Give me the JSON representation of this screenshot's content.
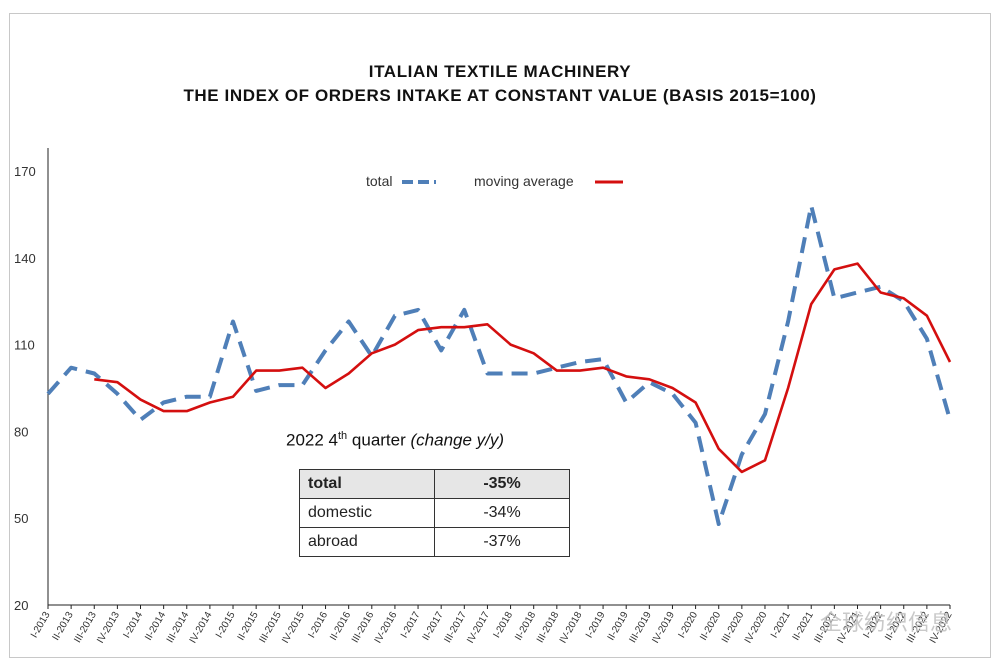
{
  "chart_data": {
    "type": "line",
    "title": [
      "ITALIAN TEXTILE MACHINERY",
      "THE INDEX OF ORDERS INTAKE AT CONSTANT VALUE (BASIS 2015=100)"
    ],
    "xlabel": "",
    "ylabel": "",
    "ylim": [
      20,
      170
    ],
    "yticks": [
      20,
      50,
      80,
      110,
      140,
      170
    ],
    "grid": false,
    "legend_position": "top-center",
    "categories": [
      "I-2013",
      "II-2013",
      "III-2013",
      "IV-2013",
      "I-2014",
      "II-2014",
      "III-2014",
      "IV-2014",
      "I-2015",
      "II-2015",
      "III-2015",
      "IV-2015",
      "I-2016",
      "II-2016",
      "III-2016",
      "IV-2016",
      "I-2017",
      "II-2017",
      "III-2017",
      "IV-2017",
      "I-2018",
      "II-2018",
      "III-2018",
      "IV-2018",
      "I-2019",
      "II-2019",
      "III-2019",
      "IV-2019",
      "I-2020",
      "II-2020",
      "III-2020",
      "IV-2020",
      "I-2021",
      "II-2021",
      "III-2021",
      "IV-2021",
      "I-2022",
      "II-2022",
      "III-2022",
      "IV-2022"
    ],
    "series": [
      {
        "name": "total",
        "style": "dashed",
        "color": "#4f7fb8",
        "values": [
          93,
          102,
          100,
          93,
          84,
          90,
          92,
          92,
          118,
          94,
          96,
          96,
          108,
          118,
          106,
          120,
          122,
          108,
          122,
          100,
          100,
          100,
          102,
          104,
          105,
          90,
          97,
          93,
          83,
          48,
          72,
          86,
          118,
          158,
          126,
          128,
          130,
          125,
          112,
          84
        ]
      },
      {
        "name": "moving average",
        "style": "solid",
        "color": "#d40f0f",
        "values": [
          null,
          null,
          98,
          97,
          91,
          87,
          87,
          90,
          92,
          101,
          101,
          102,
          95,
          100,
          107,
          110,
          115,
          116,
          116,
          117,
          110,
          107,
          101,
          101,
          102,
          99,
          98,
          95,
          90,
          74,
          66,
          70,
          95,
          124,
          136,
          138,
          128,
          126,
          120,
          104
        ]
      }
    ]
  },
  "legend": {
    "total": "total",
    "moving_average": "moving average"
  },
  "inset": {
    "title_prefix": "2022 4",
    "title_sup": "th",
    "title_suffix": " quarter ",
    "title_note": "(change y/y)",
    "rows": [
      {
        "label": "total",
        "value": "-35%"
      },
      {
        "label": "domestic",
        "value": "-34%"
      },
      {
        "label": "abroad",
        "value": "-37%"
      }
    ]
  },
  "watermark": "全球纺织信息"
}
